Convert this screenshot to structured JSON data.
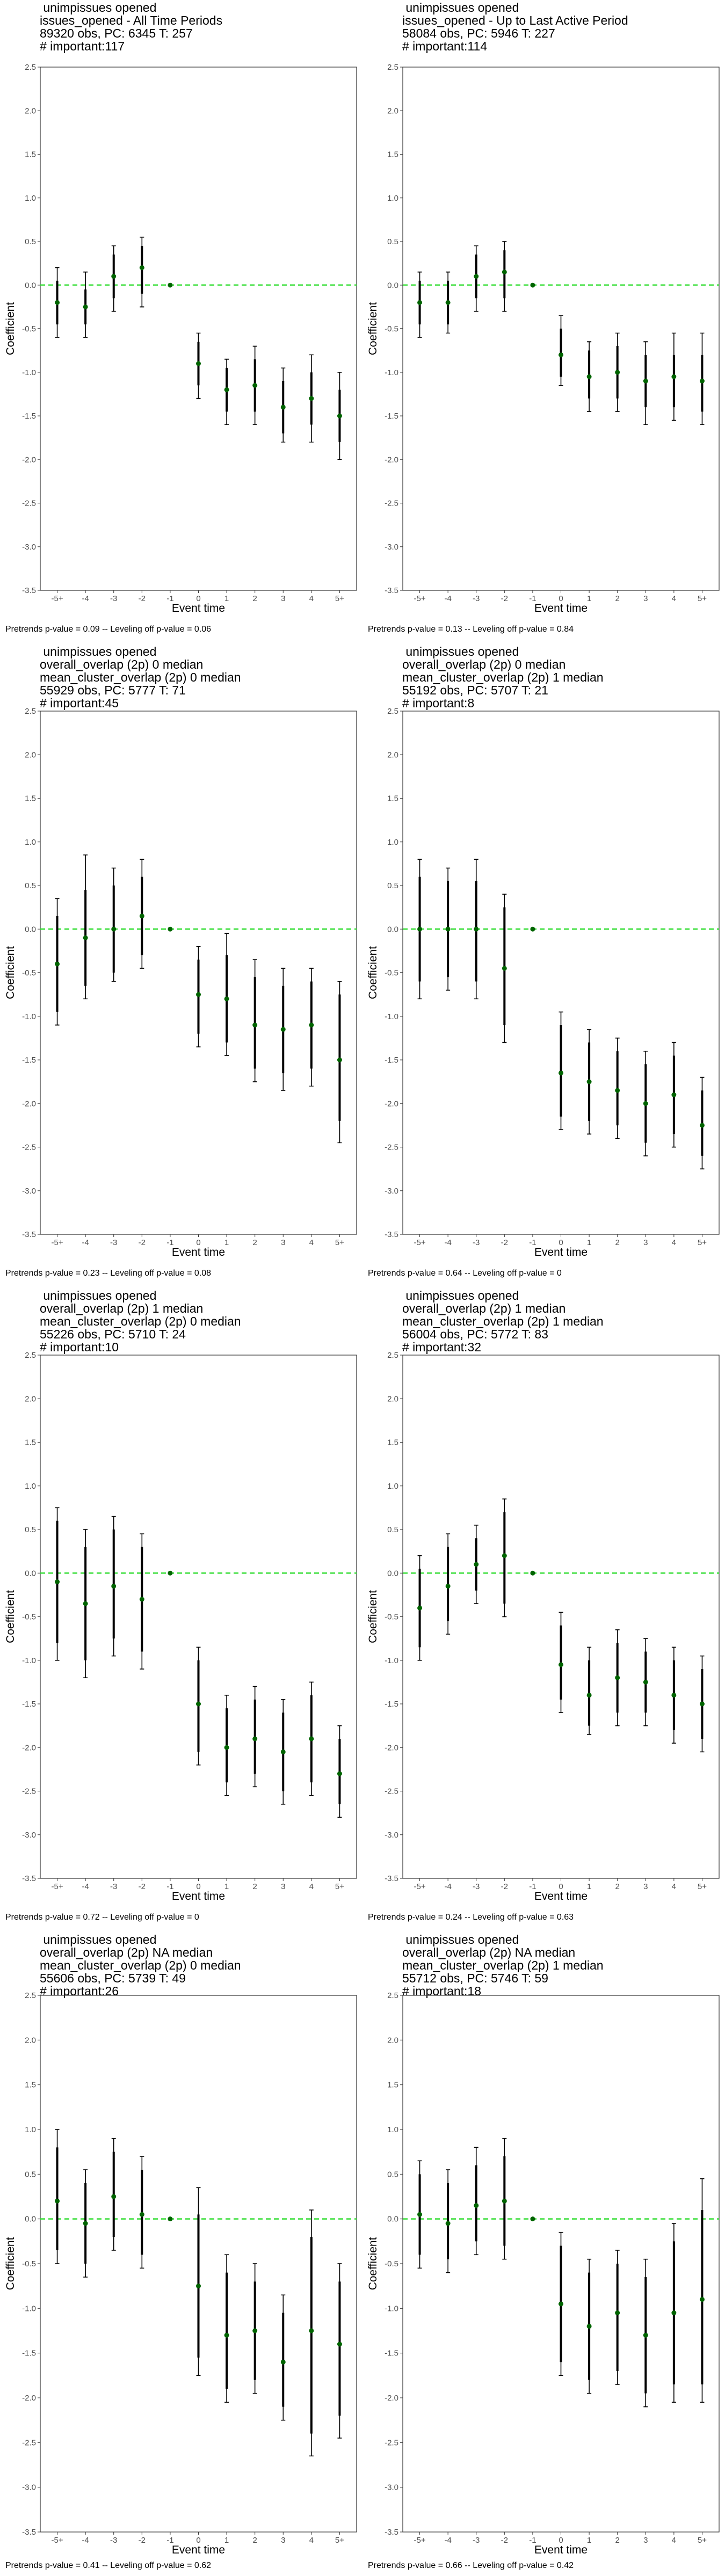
{
  "colors": {
    "point": "#006400",
    "ci": "#000000",
    "zero_line": "#33dd33",
    "frame": "#333333"
  },
  "chart_data": [
    {
      "type": "scatter",
      "title_lines": [
        " unimpissues opened",
        "issues_opened - All Time Periods",
        "89320 obs, PC: 6345 T: 257",
        "# important:117"
      ],
      "footer": "Pretrends p-value = 0.09 -- Leveling off p-value = 0.06",
      "xlabel": "Event time",
      "ylabel": "Coefficient",
      "categories": [
        "-5+",
        "-4",
        "-3",
        "-2",
        "-1",
        "0",
        "1",
        "2",
        "3",
        "4",
        "5+"
      ],
      "ylim": [
        -3.5,
        2.5
      ],
      "yticks": [
        "2.5",
        "2.0",
        "1.5",
        "1.0",
        "0.5",
        "0.0",
        "-0.5",
        "-1.0",
        "-1.5",
        "-2.0",
        "-2.5",
        "-3.0",
        "-3.5"
      ],
      "estimates": [
        -0.2,
        -0.25,
        0.1,
        0.2,
        0.0,
        -0.9,
        -1.2,
        -1.15,
        -1.4,
        -1.3,
        -1.5
      ],
      "ci_inner": [
        [
          -0.45,
          0.05
        ],
        [
          -0.45,
          -0.05
        ],
        [
          -0.15,
          0.35
        ],
        [
          -0.1,
          0.45
        ],
        [
          0,
          0
        ],
        [
          -1.15,
          -0.65
        ],
        [
          -1.45,
          -0.95
        ],
        [
          -1.45,
          -0.85
        ],
        [
          -1.7,
          -1.1
        ],
        [
          -1.6,
          -1.0
        ],
        [
          -1.8,
          -1.2
        ]
      ],
      "ci_outer": [
        [
          -0.6,
          0.2
        ],
        [
          -0.6,
          0.15
        ],
        [
          -0.3,
          0.45
        ],
        [
          -0.25,
          0.55
        ],
        [
          0,
          0
        ],
        [
          -1.3,
          -0.55
        ],
        [
          -1.6,
          -0.85
        ],
        [
          -1.6,
          -0.7
        ],
        [
          -1.8,
          -0.95
        ],
        [
          -1.8,
          -0.8
        ],
        [
          -2.0,
          -1.0
        ]
      ]
    },
    {
      "type": "scatter",
      "title_lines": [
        " unimpissues opened",
        "issues_opened - Up to Last Active Period",
        "58084 obs, PC: 5946 T: 227",
        "# important:114"
      ],
      "footer": "Pretrends p-value = 0.13 -- Leveling off p-value = 0.84",
      "xlabel": "Event time",
      "ylabel": "Coefficient",
      "categories": [
        "-5+",
        "-4",
        "-3",
        "-2",
        "-1",
        "0",
        "1",
        "2",
        "3",
        "4",
        "5+"
      ],
      "ylim": [
        -3.5,
        2.5
      ],
      "yticks": [
        "2.5",
        "2.0",
        "1.5",
        "1.0",
        "0.5",
        "0.0",
        "-0.5",
        "-1.0",
        "-1.5",
        "-2.0",
        "-2.5",
        "-3.0",
        "-3.5"
      ],
      "estimates": [
        -0.2,
        -0.2,
        0.1,
        0.15,
        0.0,
        -0.8,
        -1.05,
        -1.0,
        -1.1,
        -1.05,
        -1.1
      ],
      "ci_inner": [
        [
          -0.45,
          0.05
        ],
        [
          -0.45,
          0.05
        ],
        [
          -0.15,
          0.35
        ],
        [
          -0.15,
          0.4
        ],
        [
          0,
          0
        ],
        [
          -1.05,
          -0.5
        ],
        [
          -1.3,
          -0.75
        ],
        [
          -1.3,
          -0.7
        ],
        [
          -1.4,
          -0.8
        ],
        [
          -1.4,
          -0.8
        ],
        [
          -1.45,
          -0.8
        ]
      ],
      "ci_outer": [
        [
          -0.6,
          0.15
        ],
        [
          -0.55,
          0.15
        ],
        [
          -0.3,
          0.45
        ],
        [
          -0.3,
          0.5
        ],
        [
          0,
          0
        ],
        [
          -1.15,
          -0.35
        ],
        [
          -1.45,
          -0.65
        ],
        [
          -1.45,
          -0.55
        ],
        [
          -1.6,
          -0.65
        ],
        [
          -1.55,
          -0.55
        ],
        [
          -1.6,
          -0.55
        ]
      ]
    },
    {
      "type": "scatter",
      "title_lines": [
        " unimpissues opened",
        "overall_overlap (2p) 0 median",
        "mean_cluster_overlap (2p) 0 median",
        "55929 obs, PC: 5777 T: 71",
        "# important:45"
      ],
      "footer": "Pretrends p-value = 0.23 -- Leveling off p-value = 0.08",
      "xlabel": "Event time",
      "ylabel": "Coefficient",
      "categories": [
        "-5+",
        "-4",
        "-3",
        "-2",
        "-1",
        "0",
        "1",
        "2",
        "3",
        "4",
        "5+"
      ],
      "ylim": [
        -3.5,
        2.5
      ],
      "yticks": [
        "2.5",
        "2.0",
        "1.5",
        "1.0",
        "0.5",
        "0.0",
        "-0.5",
        "-1.0",
        "-1.5",
        "-2.0",
        "-2.5",
        "-3.0",
        "-3.5"
      ],
      "estimates": [
        -0.4,
        -0.1,
        0.0,
        0.15,
        0.0,
        -0.75,
        -0.8,
        -1.1,
        -1.15,
        -1.1,
        -1.5
      ],
      "ci_inner": [
        [
          -0.95,
          0.15
        ],
        [
          -0.65,
          0.45
        ],
        [
          -0.5,
          0.5
        ],
        [
          -0.3,
          0.6
        ],
        [
          0,
          0
        ],
        [
          -1.2,
          -0.35
        ],
        [
          -1.3,
          -0.3
        ],
        [
          -1.6,
          -0.55
        ],
        [
          -1.65,
          -0.65
        ],
        [
          -1.6,
          -0.6
        ],
        [
          -2.2,
          -0.75
        ]
      ],
      "ci_outer": [
        [
          -1.1,
          0.35
        ],
        [
          -0.8,
          0.85
        ],
        [
          -0.6,
          0.7
        ],
        [
          -0.45,
          0.8
        ],
        [
          0,
          0
        ],
        [
          -1.35,
          -0.2
        ],
        [
          -1.45,
          -0.05
        ],
        [
          -1.75,
          -0.35
        ],
        [
          -1.85,
          -0.45
        ],
        [
          -1.8,
          -0.45
        ],
        [
          -2.45,
          -0.6
        ]
      ]
    },
    {
      "type": "scatter",
      "title_lines": [
        " unimpissues opened",
        "overall_overlap (2p) 0 median",
        "mean_cluster_overlap (2p) 1 median",
        "55192 obs, PC: 5707 T: 21",
        "# important:8"
      ],
      "footer": "Pretrends p-value = 0.64 -- Leveling off p-value = 0",
      "xlabel": "Event time",
      "ylabel": "Coefficient",
      "categories": [
        "-5+",
        "-4",
        "-3",
        "-2",
        "-1",
        "0",
        "1",
        "2",
        "3",
        "4",
        "5+"
      ],
      "ylim": [
        -3.5,
        2.5
      ],
      "yticks": [
        "2.5",
        "2.0",
        "1.5",
        "1.0",
        "0.5",
        "0.0",
        "-0.5",
        "-1.0",
        "-1.5",
        "-2.0",
        "-2.5",
        "-3.0",
        "-3.5"
      ],
      "estimates": [
        0.0,
        0.0,
        0.0,
        -0.45,
        0.0,
        -1.65,
        -1.75,
        -1.85,
        -2.0,
        -1.9,
        -2.25
      ],
      "ci_inner": [
        [
          -0.6,
          0.6
        ],
        [
          -0.55,
          0.55
        ],
        [
          -0.6,
          0.55
        ],
        [
          -1.1,
          0.25
        ],
        [
          0,
          0
        ],
        [
          -2.15,
          -1.1
        ],
        [
          -2.2,
          -1.3
        ],
        [
          -2.25,
          -1.4
        ],
        [
          -2.45,
          -1.55
        ],
        [
          -2.35,
          -1.45
        ],
        [
          -2.6,
          -1.85
        ]
      ],
      "ci_outer": [
        [
          -0.8,
          0.8
        ],
        [
          -0.7,
          0.7
        ],
        [
          -0.8,
          0.8
        ],
        [
          -1.3,
          0.4
        ],
        [
          0,
          0
        ],
        [
          -2.3,
          -0.95
        ],
        [
          -2.35,
          -1.15
        ],
        [
          -2.4,
          -1.25
        ],
        [
          -2.6,
          -1.4
        ],
        [
          -2.5,
          -1.3
        ],
        [
          -2.75,
          -1.7
        ]
      ]
    },
    {
      "type": "scatter",
      "title_lines": [
        " unimpissues opened",
        "overall_overlap (2p) 1 median",
        "mean_cluster_overlap (2p) 0 median",
        "55226 obs, PC: 5710 T: 24",
        "# important:10"
      ],
      "footer": "Pretrends p-value = 0.72 -- Leveling off p-value = 0",
      "xlabel": "Event time",
      "ylabel": "Coefficient",
      "categories": [
        "-5+",
        "-4",
        "-3",
        "-2",
        "-1",
        "0",
        "1",
        "2",
        "3",
        "4",
        "5+"
      ],
      "ylim": [
        -3.5,
        2.5
      ],
      "yticks": [
        "2.5",
        "2.0",
        "1.5",
        "1.0",
        "0.5",
        "0.0",
        "-0.5",
        "-1.0",
        "-1.5",
        "-2.0",
        "-2.5",
        "-3.0",
        "-3.5"
      ],
      "estimates": [
        -0.1,
        -0.35,
        -0.15,
        -0.3,
        0.0,
        -1.5,
        -2.0,
        -1.9,
        -2.05,
        -1.9,
        -2.3
      ],
      "ci_inner": [
        [
          -0.8,
          0.6
        ],
        [
          -1.0,
          0.3
        ],
        [
          -0.75,
          0.5
        ],
        [
          -0.9,
          0.3
        ],
        [
          0,
          0
        ],
        [
          -2.05,
          -1.0
        ],
        [
          -2.4,
          -1.55
        ],
        [
          -2.3,
          -1.45
        ],
        [
          -2.5,
          -1.6
        ],
        [
          -2.4,
          -1.4
        ],
        [
          -2.65,
          -1.9
        ]
      ],
      "ci_outer": [
        [
          -1.0,
          0.75
        ],
        [
          -1.2,
          0.5
        ],
        [
          -0.95,
          0.65
        ],
        [
          -1.1,
          0.45
        ],
        [
          0,
          0
        ],
        [
          -2.2,
          -0.85
        ],
        [
          -2.55,
          -1.4
        ],
        [
          -2.45,
          -1.3
        ],
        [
          -2.65,
          -1.45
        ],
        [
          -2.55,
          -1.25
        ],
        [
          -2.8,
          -1.75
        ]
      ]
    },
    {
      "type": "scatter",
      "title_lines": [
        " unimpissues opened",
        "overall_overlap (2p) 1 median",
        "mean_cluster_overlap (2p) 1 median",
        "56004 obs, PC: 5772 T: 83",
        "# important:32"
      ],
      "footer": "Pretrends p-value = 0.24 -- Leveling off p-value = 0.63",
      "xlabel": "Event time",
      "ylabel": "Coefficient",
      "categories": [
        "-5+",
        "-4",
        "-3",
        "-2",
        "-1",
        "0",
        "1",
        "2",
        "3",
        "4",
        "5+"
      ],
      "ylim": [
        -3.5,
        2.5
      ],
      "yticks": [
        "2.5",
        "2.0",
        "1.5",
        "1.0",
        "0.5",
        "0.0",
        "-0.5",
        "-1.0",
        "-1.5",
        "-2.0",
        "-2.5",
        "-3.0",
        "-3.5"
      ],
      "estimates": [
        -0.4,
        -0.15,
        0.1,
        0.2,
        0.0,
        -1.05,
        -1.4,
        -1.2,
        -1.25,
        -1.4,
        -1.5
      ],
      "ci_inner": [
        [
          -0.85,
          0.05
        ],
        [
          -0.55,
          0.3
        ],
        [
          -0.2,
          0.4
        ],
        [
          -0.35,
          0.7
        ],
        [
          0,
          0
        ],
        [
          -1.45,
          -0.6
        ],
        [
          -1.75,
          -1.0
        ],
        [
          -1.6,
          -0.8
        ],
        [
          -1.6,
          -0.9
        ],
        [
          -1.8,
          -1.0
        ],
        [
          -1.9,
          -1.1
        ]
      ],
      "ci_outer": [
        [
          -1.0,
          0.2
        ],
        [
          -0.7,
          0.45
        ],
        [
          -0.35,
          0.55
        ],
        [
          -0.5,
          0.85
        ],
        [
          0,
          0
        ],
        [
          -1.6,
          -0.45
        ],
        [
          -1.85,
          -0.85
        ],
        [
          -1.75,
          -0.65
        ],
        [
          -1.75,
          -0.75
        ],
        [
          -1.95,
          -0.85
        ],
        [
          -2.05,
          -0.95
        ]
      ]
    },
    {
      "type": "scatter",
      "title_lines": [
        " unimpissues opened",
        "overall_overlap (2p) NA median",
        "mean_cluster_overlap (2p) 0 median",
        "55606 obs, PC: 5739 T: 49",
        "# important:26"
      ],
      "footer": "Pretrends p-value = 0.41 -- Leveling off p-value = 0.62",
      "xlabel": "Event time",
      "ylabel": "Coefficient",
      "categories": [
        "-5+",
        "-4",
        "-3",
        "-2",
        "-1",
        "0",
        "1",
        "2",
        "3",
        "4",
        "5+"
      ],
      "ylim": [
        -3.5,
        2.5
      ],
      "yticks": [
        "2.5",
        "2.0",
        "1.5",
        "1.0",
        "0.5",
        "0.0",
        "-0.5",
        "-1.0",
        "-1.5",
        "-2.0",
        "-2.5",
        "-3.0",
        "-3.5"
      ],
      "estimates": [
        0.2,
        -0.05,
        0.25,
        0.05,
        0.0,
        -0.75,
        -1.3,
        -1.25,
        -1.6,
        -1.25,
        -1.4
      ],
      "ci_inner": [
        [
          -0.35,
          0.8
        ],
        [
          -0.5,
          0.4
        ],
        [
          -0.2,
          0.75
        ],
        [
          -0.4,
          0.55
        ],
        [
          0,
          0
        ],
        [
          -1.55,
          0.05
        ],
        [
          -1.9,
          -0.6
        ],
        [
          -1.8,
          -0.7
        ],
        [
          -2.1,
          -1.05
        ],
        [
          -2.4,
          -0.2
        ],
        [
          -2.2,
          -0.7
        ]
      ],
      "ci_outer": [
        [
          -0.5,
          1.0
        ],
        [
          -0.65,
          0.55
        ],
        [
          -0.35,
          0.9
        ],
        [
          -0.55,
          0.7
        ],
        [
          0,
          0
        ],
        [
          -1.75,
          0.35
        ],
        [
          -2.05,
          -0.4
        ],
        [
          -1.95,
          -0.5
        ],
        [
          -2.25,
          -0.85
        ],
        [
          -2.65,
          0.1
        ],
        [
          -2.45,
          -0.5
        ]
      ]
    },
    {
      "type": "scatter",
      "title_lines": [
        " unimpissues opened",
        "overall_overlap (2p) NA median",
        "mean_cluster_overlap (2p) 1 median",
        "55712 obs, PC: 5746 T: 59",
        "# important:18"
      ],
      "footer": "Pretrends p-value = 0.66 -- Leveling off p-value = 0.42",
      "xlabel": "Event time",
      "ylabel": "Coefficient",
      "categories": [
        "-5+",
        "-4",
        "-3",
        "-2",
        "-1",
        "0",
        "1",
        "2",
        "3",
        "4",
        "5+"
      ],
      "ylim": [
        -3.5,
        2.5
      ],
      "yticks": [
        "2.5",
        "2.0",
        "1.5",
        "1.0",
        "0.5",
        "0.0",
        "-0.5",
        "-1.0",
        "-1.5",
        "-2.0",
        "-2.5",
        "-3.0",
        "-3.5"
      ],
      "estimates": [
        0.05,
        -0.05,
        0.15,
        0.2,
        0.0,
        -0.95,
        -1.2,
        -1.05,
        -1.3,
        -1.05,
        -0.9
      ],
      "ci_inner": [
        [
          -0.4,
          0.5
        ],
        [
          -0.45,
          0.4
        ],
        [
          -0.25,
          0.6
        ],
        [
          -0.3,
          0.7
        ],
        [
          0,
          0
        ],
        [
          -1.6,
          -0.3
        ],
        [
          -1.8,
          -0.6
        ],
        [
          -1.7,
          -0.5
        ],
        [
          -1.95,
          -0.65
        ],
        [
          -1.85,
          -0.25
        ],
        [
          -1.85,
          0.1
        ]
      ],
      "ci_outer": [
        [
          -0.55,
          0.65
        ],
        [
          -0.6,
          0.55
        ],
        [
          -0.4,
          0.8
        ],
        [
          -0.45,
          0.9
        ],
        [
          0,
          0
        ],
        [
          -1.75,
          -0.15
        ],
        [
          -1.95,
          -0.45
        ],
        [
          -1.85,
          -0.35
        ],
        [
          -2.1,
          -0.45
        ],
        [
          -2.05,
          -0.05
        ],
        [
          -2.05,
          0.45
        ]
      ]
    }
  ]
}
